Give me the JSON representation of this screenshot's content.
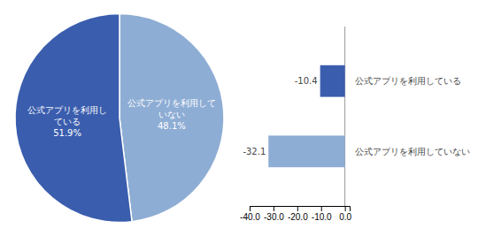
{
  "chart_data": [
    {
      "type": "pie",
      "categories": [
        "公式アプリを利用して\nいない",
        "公式アプリを利用し\nている"
      ],
      "values": [
        48.1,
        51.9
      ],
      "value_labels": [
        "48.1%",
        "51.9%"
      ],
      "colors": [
        "#8eadd4",
        "#3a5dae"
      ],
      "data_labels": true
    },
    {
      "type": "bar",
      "orientation": "horizontal",
      "categories": [
        "公式アプリを利用している",
        "公式アプリを利用していない"
      ],
      "values": [
        -10.4,
        -32.1
      ],
      "colors": [
        "#3a5dae",
        "#8eadd4"
      ],
      "data_labels": true,
      "xlim": [
        -40,
        2
      ],
      "xticks": [
        {
          "value": -40,
          "label": "-40.0"
        },
        {
          "value": -30,
          "label": "-30.0"
        },
        {
          "value": -20,
          "label": "-20.0"
        },
        {
          "value": -10,
          "label": "-10.0"
        },
        {
          "value": 0,
          "label": "0.0"
        }
      ]
    }
  ]
}
